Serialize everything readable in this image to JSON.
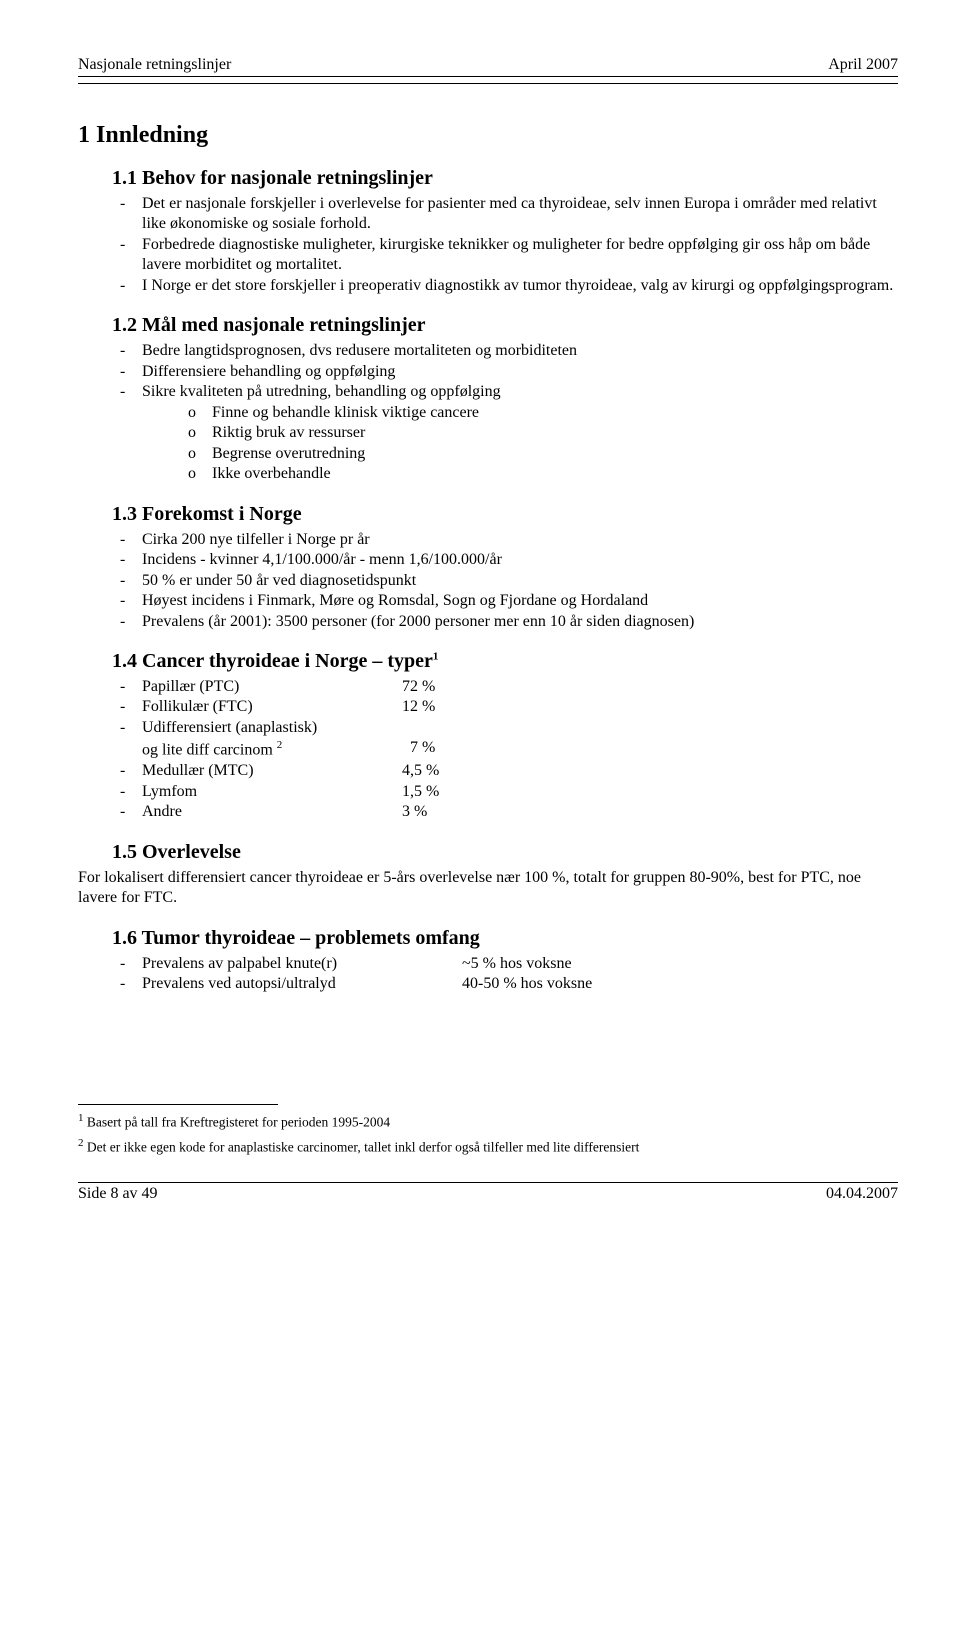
{
  "header": {
    "left": "Nasjonale retningslinjer",
    "right": "April  2007"
  },
  "h1": "1   Innledning",
  "s11": {
    "title": "1.1   Behov for nasjonale retningslinjer",
    "items": [
      "Det er nasjonale forskjeller i overlevelse for pasienter med ca thyroideae, selv innen Europa i områder med relativt like økonomiske og sosiale forhold.",
      "Forbedrede diagnostiske muligheter, kirurgiske teknikker og muligheter for bedre oppfølging gir oss håp om både lavere morbiditet og mortalitet.",
      "I Norge er det store forskjeller i preoperativ diagnostikk av tumor thyroideae, valg av kirurgi og oppfølgingsprogram."
    ]
  },
  "s12": {
    "title": "1.2   Mål med nasjonale retningslinjer",
    "items": [
      "Bedre langtidsprognosen, dvs redusere mortaliteten og morbiditeten",
      "Differensiere behandling og oppfølging",
      "Sikre kvaliteten på utredning, behandling og oppfølging"
    ],
    "sub": [
      "Finne og behandle klinisk viktige cancere",
      "Riktig bruk av ressurser",
      "Begrense overutredning",
      "Ikke overbehandle"
    ]
  },
  "s13": {
    "title": "1.3   Forekomst i Norge",
    "items": [
      "Cirka 200 nye tilfeller i Norge pr år",
      "Incidens - kvinner 4,1/100.000/år - menn 1,6/100.000/år",
      "50 % er under 50 år ved diagnosetidspunkt",
      "Høyest incidens i Finmark, Møre og Romsdal, Sogn og Fjordane og Hordaland",
      "Prevalens (år 2001): 3500 personer (for 2000 personer mer enn 10 år siden diagnosen)"
    ]
  },
  "s14": {
    "title_pre": "1.4   Cancer thyroideae i Norge – typer",
    "sup1": "1",
    "rows": [
      {
        "label": "Papillær (PTC)",
        "val": "72 %"
      },
      {
        "label": "Follikulær (FTC)",
        "val": "12 %"
      }
    ],
    "udiff_label": "Udifferensiert (anaplastisk)",
    "udiff_line2_pre": "og lite diff carcinom ",
    "sup2": "2",
    "udiff_val": "  7 %",
    "tail": [
      {
        "label": "Medullær (MTC)",
        "val": "4,5 %"
      },
      {
        "label": "Lymfom",
        "val": "1,5 %"
      },
      {
        "label": "Andre",
        "val": "3 %"
      }
    ]
  },
  "s15": {
    "title": "1.5   Overlevelse",
    "para": "For lokalisert differensiert cancer thyroideae er 5-års overlevelse nær 100 %, totalt for gruppen 80-90%, best for PTC, noe lavere for FTC."
  },
  "s16": {
    "title": "1.6   Tumor thyroideae – problemets omfang",
    "rows": [
      {
        "label": "Prevalens av palpabel knute(r)",
        "val": "~5 % hos voksne"
      },
      {
        "label": "Prevalens ved autopsi/ultralyd",
        "val": "40-50 % hos voksne"
      }
    ]
  },
  "footnotes": {
    "n1_sup": "1",
    "n1": " Basert på tall fra Kreftregisteret for perioden 1995-2004",
    "n2_sup": "2",
    "n2": " Det er ikke egen kode for anaplastiske carcinomer, tallet inkl derfor også tilfeller med lite differensiert"
  },
  "footer": {
    "left": "Side 8 av 49",
    "right": "04.04.2007"
  }
}
